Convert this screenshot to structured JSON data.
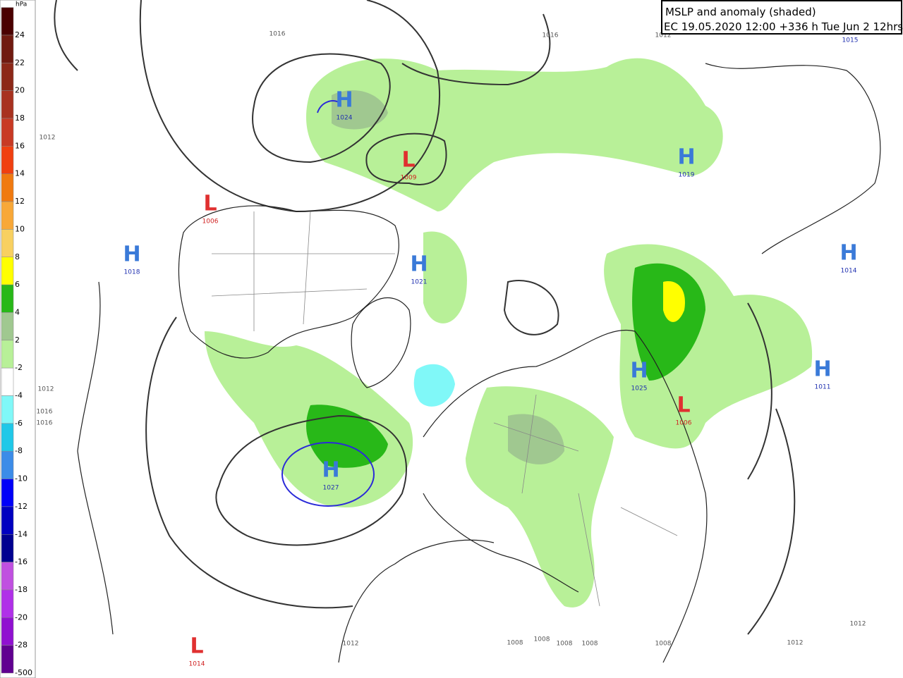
{
  "title": {
    "line1": "MSLP and anomaly (shaded)",
    "line2": "EC 19.05.2020 12:00 +336 h Tue Jun 2 12hrs"
  },
  "legend": {
    "unit": "hPa",
    "labels": [
      "24",
      "22",
      "20",
      "18",
      "16",
      "14",
      "12",
      "10",
      "8",
      "6",
      "4",
      "2",
      "-2",
      "-4",
      "-6",
      "-8",
      "-10",
      "-12",
      "-14",
      "-16",
      "-18",
      "-20",
      "-28",
      "-500"
    ],
    "colors": [
      "#4a0000",
      "#701a10",
      "#8c2818",
      "#a83220",
      "#c83a24",
      "#f04010",
      "#f07a10",
      "#f8a838",
      "#f8d060",
      "#ffff00",
      "#28b818",
      "#a0c890",
      "#b8f098",
      "#ffffff",
      "#80f8f8",
      "#20c8e8",
      "#3c8ce8",
      "#0000f8",
      "#0000c0",
      "#000090",
      "#c050e0",
      "#b030e8",
      "#9010d0",
      "#600090"
    ]
  },
  "centers": [
    {
      "letter": "H",
      "value": "1024"
    },
    {
      "letter": "L",
      "value": "1009"
    },
    {
      "letter": "L",
      "value": "1006"
    },
    {
      "letter": "H",
      "value": "1018"
    },
    {
      "letter": "H",
      "value": "1021"
    },
    {
      "letter": "H",
      "value": "1019"
    },
    {
      "letter": "H",
      "value": "1014"
    },
    {
      "letter": "H",
      "value": "1025"
    },
    {
      "letter": "H",
      "value": "1011"
    },
    {
      "letter": "L",
      "value": "1006"
    },
    {
      "letter": "H",
      "value": "1027"
    },
    {
      "letter": "L",
      "value": "1014"
    },
    {
      "value": "1015"
    }
  ],
  "isobar_labels": [
    "1016",
    "1016",
    "1012",
    "1012",
    "1012",
    "1016",
    "1016",
    "1012",
    "1008",
    "1008",
    "1008",
    "1008",
    "1008",
    "1012",
    "1012"
  ]
}
